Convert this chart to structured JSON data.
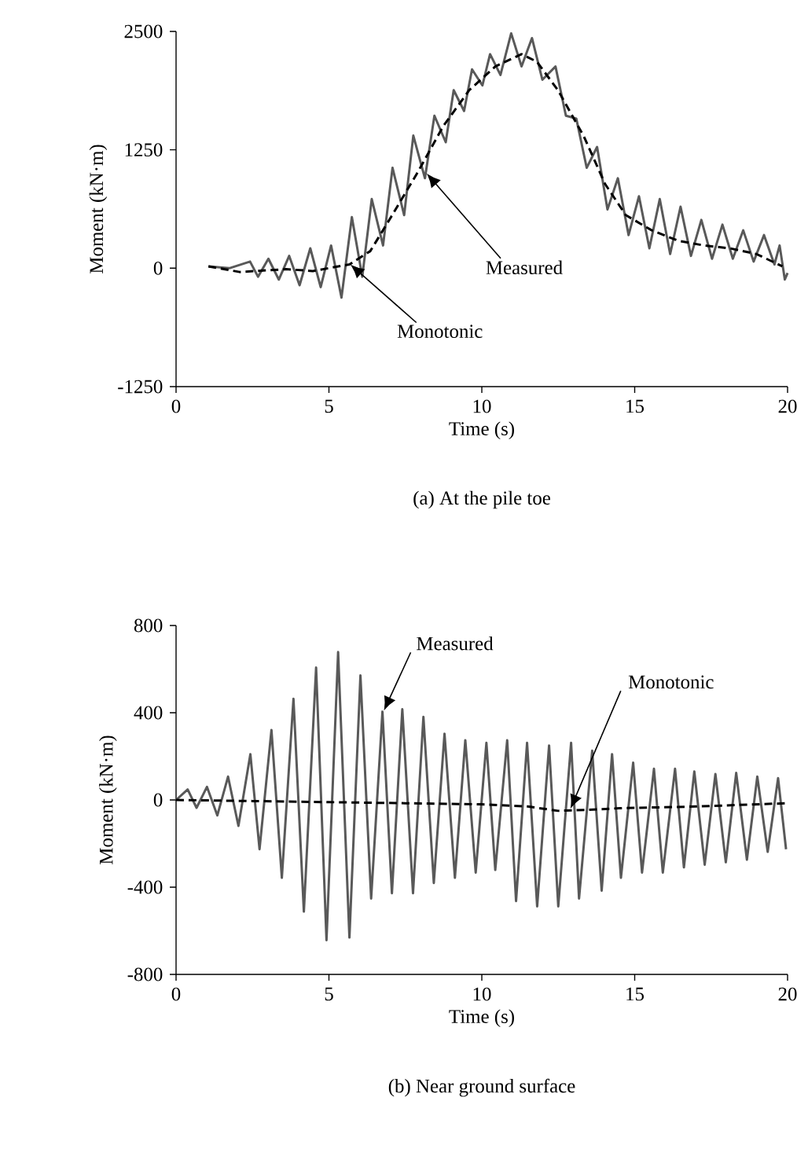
{
  "chart_data": [
    {
      "type": "line",
      "title": "(a) At the pile toe",
      "xlabel": "Time (s)",
      "ylabel": "Moment (kN·m)",
      "xlim": [
        0,
        20
      ],
      "ylim": [
        -1250,
        2500
      ],
      "xticks": [
        0,
        5,
        10,
        15,
        20
      ],
      "yticks": [
        -1250,
        0,
        1250,
        2500
      ],
      "series": [
        {
          "color": "#595959",
          "line_style": "solid",
          "x": [
            1.06,
            1.74,
            2.42,
            2.68,
            3.02,
            3.36,
            3.7,
            4.04,
            4.39,
            4.73,
            5.07,
            5.41,
            5.75,
            6.09,
            6.4,
            6.77,
            7.08,
            7.46,
            7.76,
            8.14,
            8.45,
            8.82,
            9.08,
            9.42,
            9.68,
            10.02,
            10.27,
            10.61,
            10.96,
            11.3,
            11.64,
            11.98,
            12.41,
            12.75,
            13.09,
            13.43,
            13.77,
            14.11,
            14.45,
            14.8,
            15.14,
            15.48,
            15.82,
            16.16,
            16.5,
            16.84,
            17.18,
            17.53,
            17.87,
            18.21,
            18.55,
            18.89,
            19.23,
            19.57,
            19.74,
            19.91,
            20
          ],
          "values": [
            20,
            0,
            70,
            -90,
            100,
            -120,
            130,
            -180,
            210,
            -200,
            240,
            -310,
            540,
            -90,
            730,
            240,
            1060,
            560,
            1400,
            950,
            1610,
            1330,
            1880,
            1660,
            2100,
            1930,
            2260,
            2040,
            2480,
            2130,
            2430,
            1990,
            2130,
            1610,
            1580,
            1060,
            1280,
            620,
            950,
            350,
            760,
            210,
            730,
            150,
            650,
            130,
            510,
            100,
            460,
            100,
            400,
            70,
            350,
            40,
            240,
            -120,
            -50
          ]
        },
        {
          "color": "#000000",
          "line_style": "dashed",
          "x": [
            1.06,
            2.08,
            3.6,
            4.47,
            5.67,
            6.35,
            7.03,
            7.88,
            8.74,
            9.59,
            10.44,
            11.3,
            11.8,
            12.49,
            13.34,
            14.03,
            14.71,
            15.56,
            16.42,
            17.27,
            18.12,
            18.98,
            19.83
          ],
          "values": [
            20,
            -40,
            -10,
            -30,
            40,
            180,
            540,
            1000,
            1500,
            1880,
            2130,
            2260,
            2180,
            1880,
            1390,
            890,
            560,
            400,
            290,
            240,
            210,
            150,
            20
          ]
        }
      ],
      "annotations": [
        {
          "text": "Measured",
          "x": 8.2,
          "y": 1000
        },
        {
          "text": "Monotonic",
          "x": 5.7,
          "y": 40
        }
      ]
    },
    {
      "type": "line",
      "title": "(b) Near ground surface",
      "xlabel": "Time (s)",
      "ylabel": "Moment (kN·m)",
      "xlim": [
        0,
        20
      ],
      "ylim": [
        -800,
        800
      ],
      "xticks": [
        0,
        5,
        10,
        15,
        20
      ],
      "yticks": [
        -800,
        -400,
        0,
        400,
        800
      ],
      "series": [
        {
          "color": "#595959",
          "line_style": "solid",
          "x": [
            0,
            0.38,
            0.67,
            1.01,
            1.35,
            1.7,
            2.04,
            2.43,
            2.73,
            3.12,
            3.46,
            3.84,
            4.18,
            4.58,
            4.92,
            5.3,
            5.67,
            6.03,
            6.38,
            6.75,
            7.06,
            7.4,
            7.75,
            8.09,
            8.43,
            8.78,
            9.12,
            9.46,
            9.8,
            10.15,
            10.44,
            10.83,
            11.12,
            11.48,
            11.81,
            12.2,
            12.5,
            12.92,
            13.18,
            13.61,
            13.92,
            14.26,
            14.55,
            14.95,
            15.24,
            15.63,
            15.92,
            16.32,
            16.61,
            16.95,
            17.29,
            17.64,
            17.98,
            18.32,
            18.67,
            19.01,
            19.35,
            19.69,
            19.95
          ],
          "values": [
            0,
            48,
            -36,
            60,
            -71,
            107,
            -119,
            210,
            -226,
            321,
            -357,
            464,
            -512,
            607,
            -643,
            678,
            -631,
            571,
            -452,
            405,
            -428,
            416,
            -428,
            381,
            -381,
            304,
            -357,
            274,
            -333,
            262,
            -321,
            274,
            -464,
            262,
            -488,
            250,
            -488,
            262,
            -452,
            226,
            -416,
            210,
            -357,
            171,
            -333,
            143,
            -333,
            143,
            -309,
            131,
            -297,
            119,
            -286,
            124,
            -274,
            107,
            -238,
            100,
            -226
          ]
        },
        {
          "color": "#000000",
          "line_style": "dashed",
          "x": [
            0,
            2.5,
            5,
            7.5,
            10,
            11.5,
            12.5,
            13.5,
            14.5,
            17,
            20
          ],
          "values": [
            0,
            -5,
            -10,
            -15,
            -20,
            -30,
            -50,
            -45,
            -38,
            -30,
            -15
          ]
        }
      ],
      "annotations": [
        {
          "text": "Measured",
          "x": 6.8,
          "y": 410
        },
        {
          "text": "Monotonic",
          "x": 12.9,
          "y": -40
        }
      ]
    }
  ]
}
